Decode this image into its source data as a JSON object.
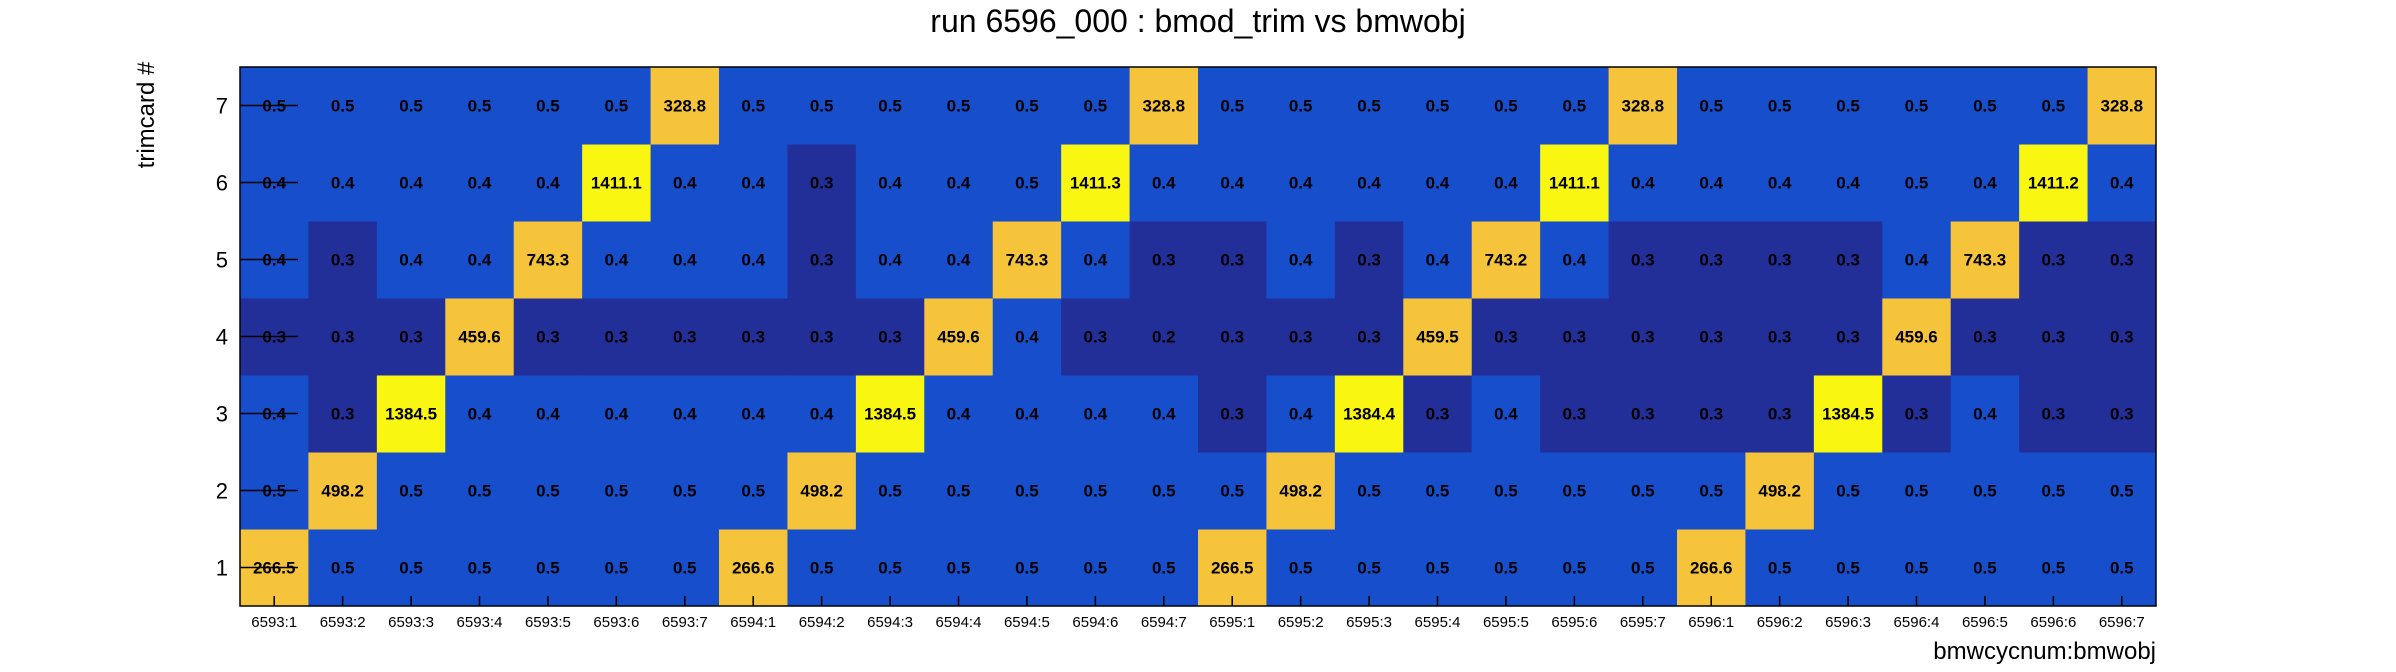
{
  "chart_data": {
    "type": "heatmap",
    "title": "run 6596_000 : bmod_trim vs bmwobj",
    "xlabel": "bmwcycnum:bmwobj",
    "ylabel": "trimcard #",
    "x_categories": [
      "6593:1",
      "6593:2",
      "6593:3",
      "6593:4",
      "6593:5",
      "6593:6",
      "6593:7",
      "6594:1",
      "6594:2",
      "6594:3",
      "6594:4",
      "6594:5",
      "6594:6",
      "6594:7",
      "6595:1",
      "6595:2",
      "6595:3",
      "6595:4",
      "6595:5",
      "6595:6",
      "6595:7",
      "6596:1",
      "6596:2",
      "6596:3",
      "6596:4",
      "6596:5",
      "6596:6",
      "6596:7"
    ],
    "y_categories": [
      "1",
      "2",
      "3",
      "4",
      "5",
      "6",
      "7"
    ],
    "values": [
      [
        266.5,
        0.5,
        0.5,
        0.5,
        0.5,
        0.5,
        0.5,
        266.6,
        0.5,
        0.5,
        0.5,
        0.5,
        0.5,
        0.5,
        266.5,
        0.5,
        0.5,
        0.5,
        0.5,
        0.5,
        0.5,
        266.6,
        0.5,
        0.5,
        0.5,
        0.5,
        0.5,
        0.5
      ],
      [
        0.5,
        498.2,
        0.5,
        0.5,
        0.5,
        0.5,
        0.5,
        0.5,
        498.2,
        0.5,
        0.5,
        0.5,
        0.5,
        0.5,
        0.5,
        498.2,
        0.5,
        0.5,
        0.5,
        0.5,
        0.5,
        0.5,
        498.2,
        0.5,
        0.5,
        0.5,
        0.5,
        0.5
      ],
      [
        0.4,
        0.3,
        1384.5,
        0.4,
        0.4,
        0.4,
        0.4,
        0.4,
        0.4,
        1384.5,
        0.4,
        0.4,
        0.4,
        0.4,
        0.3,
        0.4,
        1384.4,
        0.3,
        0.4,
        0.3,
        0.3,
        0.3,
        0.3,
        1384.5,
        0.3,
        0.4,
        0.3,
        0.3
      ],
      [
        0.3,
        0.3,
        0.3,
        459.6,
        0.3,
        0.3,
        0.3,
        0.3,
        0.3,
        0.3,
        459.6,
        0.4,
        0.3,
        0.2,
        0.3,
        0.3,
        0.3,
        459.5,
        0.3,
        0.3,
        0.3,
        0.3,
        0.3,
        0.3,
        459.6,
        0.3,
        0.3,
        0.3
      ],
      [
        0.4,
        0.3,
        0.4,
        0.4,
        743.3,
        0.4,
        0.4,
        0.4,
        0.3,
        0.4,
        0.4,
        743.3,
        0.4,
        0.3,
        0.3,
        0.4,
        0.3,
        0.4,
        743.2,
        0.4,
        0.3,
        0.3,
        0.3,
        0.3,
        0.4,
        743.3,
        0.3,
        0.3
      ],
      [
        0.4,
        0.4,
        0.4,
        0.4,
        0.4,
        1411.1,
        0.4,
        0.4,
        0.3,
        0.4,
        0.4,
        0.5,
        1411.3,
        0.4,
        0.4,
        0.4,
        0.4,
        0.4,
        0.4,
        1411.1,
        0.4,
        0.4,
        0.4,
        0.4,
        0.5,
        0.4,
        1411.2,
        0.4
      ],
      [
        0.5,
        0.5,
        0.5,
        0.5,
        0.5,
        0.5,
        328.8,
        0.5,
        0.5,
        0.5,
        0.5,
        0.5,
        0.5,
        328.8,
        0.5,
        0.5,
        0.5,
        0.5,
        0.5,
        0.5,
        328.8,
        0.5,
        0.5,
        0.5,
        0.5,
        0.5,
        0.5,
        328.8
      ]
    ],
    "colors": {
      "low": "#232f99",
      "mid_low": "#174ecc",
      "mid_high": "#f6c43a",
      "high": "#f9f611",
      "frame": "#000000"
    },
    "legend": false,
    "grid": false
  }
}
